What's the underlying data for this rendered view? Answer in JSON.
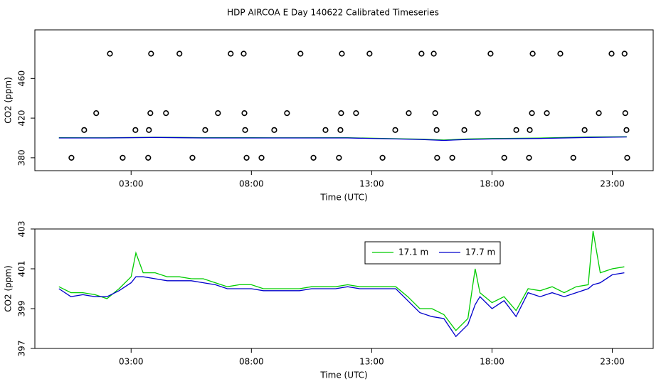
{
  "chart_data": [
    {
      "type": "line",
      "title": "HDP AIRCOA E  Day 140622  Calibrated Timeseries",
      "xlabel": "Time (UTC)",
      "ylabel": "CO2 (ppm)",
      "xlim": [
        -1,
        24.7
      ],
      "ylim": [
        367,
        509
      ],
      "xticks": [
        {
          "value": 3,
          "label": "03:00"
        },
        {
          "value": 8,
          "label": "08:00"
        },
        {
          "value": 13,
          "label": "13:00"
        },
        {
          "value": 18,
          "label": "18:00"
        },
        {
          "value": 23,
          "label": "23:00"
        }
      ],
      "yticks": [
        380,
        420,
        460
      ],
      "x": [
        0,
        2,
        4,
        6,
        8,
        10,
        12,
        14,
        15,
        16,
        17,
        18,
        20,
        22,
        23.6
      ],
      "series": [
        {
          "color": "#00cc00",
          "values": [
            400.2,
            400.1,
            400.7,
            400.3,
            400.2,
            400.1,
            400.2,
            399.3,
            398.8,
            397.9,
            399.0,
            399.4,
            399.9,
            400.9,
            401.2
          ]
        },
        {
          "color": "#0000cc",
          "values": [
            400,
            400,
            400.5,
            400,
            400,
            400,
            400,
            399,
            398.5,
            397.5,
            398.5,
            399,
            399.5,
            400.5,
            401
          ]
        }
      ],
      "points": {
        "color": "#000000",
        "x": [
          2.12,
          3.83,
          5.01,
          7.14,
          7.68,
          10.04,
          11.76,
          12.91,
          15.07,
          15.58,
          17.94,
          19.69,
          20.84,
          22.97,
          23.51,
          1.55,
          3.8,
          4.45,
          6.61,
          7.71,
          9.48,
          11.73,
          12.35,
          14.54,
          15.64,
          17.41,
          19.66,
          20.28,
          22.44,
          23.54,
          1.05,
          3.18,
          3.74,
          6.08,
          7.74,
          8.95,
          11.08,
          11.7,
          13.98,
          15.7,
          16.85,
          19.01,
          19.57,
          21.85,
          23.59,
          0.52,
          2.65,
          3.71,
          5.55,
          7.8,
          8.42,
          10.58,
          11.64,
          13.45,
          15.72,
          16.35,
          18.51,
          19.54,
          21.38,
          23.62
        ],
        "values": [
          485,
          485,
          485,
          485,
          485,
          485,
          485,
          485,
          485,
          485,
          485,
          485,
          485,
          485,
          485,
          425,
          425,
          425,
          425,
          425,
          425,
          425,
          425,
          425,
          425,
          425,
          425,
          425,
          425,
          425,
          408,
          408,
          408,
          408,
          408,
          408,
          408,
          408,
          408,
          408,
          408,
          408,
          408,
          408,
          408,
          380,
          380,
          380,
          380,
          380,
          380,
          380,
          380,
          380,
          380,
          380,
          380,
          380,
          380,
          380
        ]
      }
    },
    {
      "type": "line",
      "xlabel": "Time (UTC)",
      "ylabel": "CO2 (ppm)",
      "xlim": [
        -1,
        24.7
      ],
      "ylim": [
        397,
        403
      ],
      "xticks": [
        {
          "value": 3,
          "label": "03:00"
        },
        {
          "value": 8,
          "label": "08:00"
        },
        {
          "value": 13,
          "label": "13:00"
        },
        {
          "value": 18,
          "label": "18:00"
        },
        {
          "value": 23,
          "label": "23:00"
        }
      ],
      "yticks": [
        397,
        399,
        401,
        403
      ],
      "legend": "top-right",
      "x": [
        0,
        0.5,
        1,
        1.5,
        2,
        2.5,
        3,
        3.2,
        3.5,
        4,
        4.5,
        5,
        5.5,
        6,
        6.5,
        7,
        7.5,
        8,
        8.5,
        9,
        9.5,
        10,
        10.5,
        11,
        11.5,
        12,
        12.5,
        13,
        13.5,
        14,
        14.5,
        15,
        15.5,
        16,
        16.5,
        17,
        17.3,
        17.5,
        18,
        18.5,
        19,
        19.5,
        20,
        20.5,
        21,
        21.5,
        22,
        22.2,
        22.5,
        23,
        23.5
      ],
      "series": [
        {
          "name": "17.1 m",
          "color": "#00cc00",
          "values": [
            400.1,
            399.8,
            399.8,
            399.7,
            399.5,
            400.0,
            400.6,
            401.8,
            400.8,
            400.8,
            400.6,
            400.6,
            400.5,
            400.5,
            400.3,
            400.1,
            400.2,
            400.2,
            400.0,
            400.0,
            400.0,
            400.0,
            400.1,
            400.1,
            400.1,
            400.2,
            400.1,
            400.1,
            400.1,
            400.1,
            399.6,
            399.0,
            399.0,
            398.7,
            397.9,
            398.5,
            401.0,
            399.8,
            399.3,
            399.6,
            398.9,
            400.0,
            399.9,
            400.1,
            399.8,
            400.1,
            400.2,
            402.9,
            400.8,
            401.0,
            401.1
          ]
        },
        {
          "name": "17.7 m",
          "color": "#0000cc",
          "values": [
            400.0,
            399.6,
            399.7,
            399.6,
            399.6,
            399.9,
            400.3,
            400.6,
            400.6,
            400.5,
            400.4,
            400.4,
            400.4,
            400.3,
            400.2,
            400.0,
            400.0,
            400.0,
            399.9,
            399.9,
            399.9,
            399.9,
            400.0,
            400.0,
            400.0,
            400.1,
            400.0,
            400.0,
            400.0,
            400.0,
            399.4,
            398.8,
            398.6,
            398.5,
            397.6,
            398.2,
            399.2,
            399.6,
            399.0,
            399.4,
            398.6,
            399.8,
            399.6,
            399.8,
            399.6,
            399.8,
            400.0,
            400.2,
            400.3,
            400.7,
            400.8
          ]
        }
      ]
    }
  ]
}
